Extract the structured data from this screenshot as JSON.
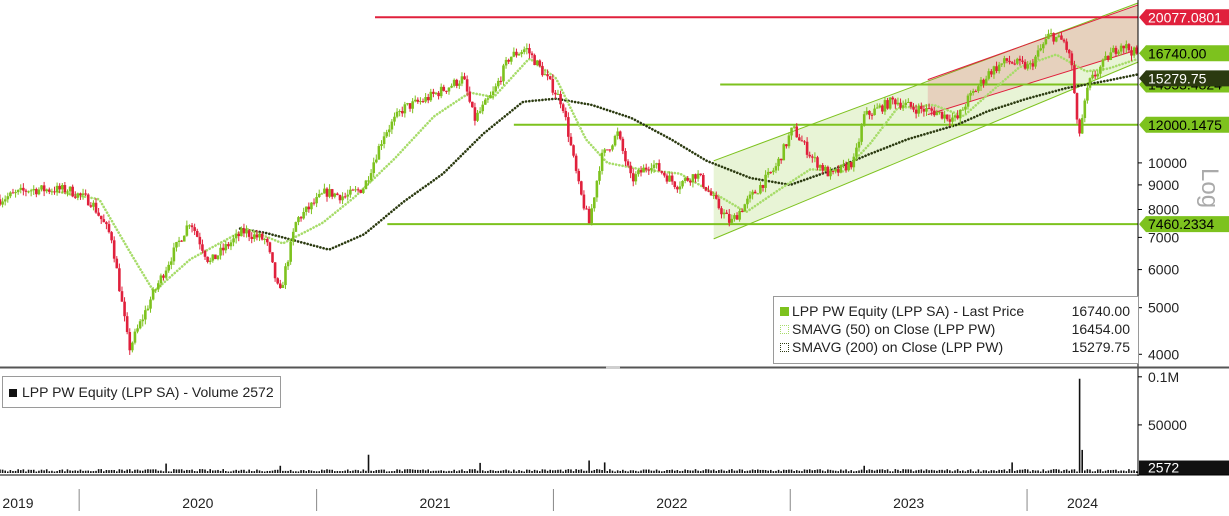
{
  "chart_data": [
    {
      "type": "candlestick",
      "scale": "log",
      "ylim": [
        3800,
        21500
      ],
      "y_axis_label": "Log",
      "y_ticks": [
        4000,
        5000,
        6000,
        7000,
        8000,
        9000,
        10000
      ],
      "x_labels": [
        "2019",
        "2020",
        "2021",
        "2022",
        "2023",
        "2024"
      ],
      "x_range": [
        "2019-09-01",
        "2024-06-20"
      ],
      "series": [
        {
          "name": "LPP PW Equity (LPP SA) - Last Price",
          "legend_value": "16740.00",
          "color": "#7dc21e"
        },
        {
          "name": "SMAVG (50)  on Close (LPP PW)",
          "legend_value": "16454.00",
          "color": "#a7dc6a"
        },
        {
          "name": "SMAVG (200)  on Close (LPP PW)",
          "legend_value": "15279.75",
          "color": "#2b3a10"
        }
      ],
      "price_points": [
        [
          "2019-09-01",
          8400
        ],
        [
          "2019-10-15",
          8800
        ],
        [
          "2019-12-15",
          8800
        ],
        [
          "2020-01-20",
          8300
        ],
        [
          "2020-02-20",
          7000
        ],
        [
          "2020-03-18",
          4100
        ],
        [
          "2020-04-20",
          5200
        ],
        [
          "2020-05-20",
          6300
        ],
        [
          "2020-06-20",
          7600
        ],
        [
          "2020-07-20",
          6200
        ],
        [
          "2020-08-20",
          6800
        ],
        [
          "2020-09-10",
          7200
        ],
        [
          "2020-10-15",
          6900
        ],
        [
          "2020-11-05",
          5300
        ],
        [
          "2020-12-01",
          7600
        ],
        [
          "2021-01-15",
          8700
        ],
        [
          "2021-02-15",
          8500
        ],
        [
          "2021-03-15",
          8900
        ],
        [
          "2021-04-15",
          11500
        ],
        [
          "2021-05-15",
          13000
        ],
        [
          "2021-06-15",
          13500
        ],
        [
          "2021-07-15",
          14200
        ],
        [
          "2021-08-15",
          15000
        ],
        [
          "2021-09-01",
          12300
        ],
        [
          "2021-10-01",
          14000
        ],
        [
          "2021-10-25",
          16600
        ],
        [
          "2021-11-20",
          17300
        ],
        [
          "2021-12-15",
          15500
        ],
        [
          "2022-01-15",
          13300
        ],
        [
          "2022-02-10",
          8800
        ],
        [
          "2022-02-25",
          7500
        ],
        [
          "2022-03-15",
          10200
        ],
        [
          "2022-04-10",
          11500
        ],
        [
          "2022-05-01",
          9200
        ],
        [
          "2022-06-01",
          10000
        ],
        [
          "2022-07-10",
          9000
        ],
        [
          "2022-08-10",
          9500
        ],
        [
          "2022-09-10",
          8200
        ],
        [
          "2022-10-01",
          7500
        ],
        [
          "2022-10-20",
          8100
        ],
        [
          "2022-12-10",
          9800
        ],
        [
          "2023-01-05",
          11800
        ],
        [
          "2023-02-05",
          10200
        ],
        [
          "2023-03-05",
          9400
        ],
        [
          "2023-04-10",
          10100
        ],
        [
          "2023-04-25",
          12500
        ],
        [
          "2023-06-10",
          13500
        ],
        [
          "2023-07-10",
          13000
        ],
        [
          "2023-08-10",
          12800
        ],
        [
          "2023-09-15",
          12300
        ],
        [
          "2023-10-01",
          13500
        ],
        [
          "2023-11-05",
          15500
        ],
        [
          "2023-12-01",
          16300
        ],
        [
          "2024-01-05",
          15800
        ],
        [
          "2024-02-05",
          18500
        ],
        [
          "2024-02-28",
          17800
        ],
        [
          "2024-03-10",
          16000
        ],
        [
          "2024-03-20",
          11200
        ],
        [
          "2024-04-05",
          14600
        ],
        [
          "2024-05-05",
          16600
        ],
        [
          "2024-05-25",
          17700
        ],
        [
          "2024-06-20",
          16740
        ]
      ],
      "sma50_points": [
        [
          "2019-12-01",
          8700
        ],
        [
          "2020-02-01",
          8400
        ],
        [
          "2020-03-20",
          6500
        ],
        [
          "2020-04-25",
          5400
        ],
        [
          "2020-06-20",
          6300
        ],
        [
          "2020-09-15",
          7300
        ],
        [
          "2020-11-10",
          6800
        ],
        [
          "2021-01-10",
          7500
        ],
        [
          "2021-03-01",
          8500
        ],
        [
          "2021-05-01",
          10200
        ],
        [
          "2021-07-01",
          12500
        ],
        [
          "2021-08-25",
          14000
        ],
        [
          "2021-10-01",
          13700
        ],
        [
          "2021-11-25",
          16500
        ],
        [
          "2022-01-05",
          15000
        ],
        [
          "2022-02-20",
          11200
        ],
        [
          "2022-03-25",
          10000
        ],
        [
          "2022-05-15",
          9700
        ],
        [
          "2022-07-15",
          9500
        ],
        [
          "2022-09-15",
          8500
        ],
        [
          "2022-10-25",
          7900
        ],
        [
          "2022-12-15",
          8800
        ],
        [
          "2023-02-01",
          9700
        ],
        [
          "2023-03-25",
          9600
        ],
        [
          "2023-05-05",
          11000
        ],
        [
          "2023-06-15",
          13000
        ],
        [
          "2023-08-10",
          13200
        ],
        [
          "2023-09-25",
          12500
        ],
        [
          "2023-11-05",
          14000
        ],
        [
          "2023-12-20",
          15800
        ],
        [
          "2024-02-15",
          16800
        ],
        [
          "2024-04-01",
          15500
        ],
        [
          "2024-05-05",
          15700
        ],
        [
          "2024-06-20",
          16454
        ]
      ],
      "sma200_points": [
        [
          "2020-09-05",
          7300
        ],
        [
          "2020-10-15",
          7150
        ],
        [
          "2020-12-15",
          6800
        ],
        [
          "2021-01-20",
          6600
        ],
        [
          "2021-03-15",
          7100
        ],
        [
          "2021-05-15",
          8300
        ],
        [
          "2021-07-15",
          9500
        ],
        [
          "2021-09-15",
          11500
        ],
        [
          "2021-11-15",
          13400
        ],
        [
          "2022-01-05",
          13600
        ],
        [
          "2022-03-01",
          13200
        ],
        [
          "2022-05-01",
          12400
        ],
        [
          "2022-07-01",
          11200
        ],
        [
          "2022-08-25",
          10100
        ],
        [
          "2022-11-01",
          9300
        ],
        [
          "2023-01-01",
          9000
        ],
        [
          "2023-03-01",
          9600
        ],
        [
          "2023-05-01",
          10400
        ],
        [
          "2023-07-01",
          11200
        ],
        [
          "2023-09-15",
          12000
        ],
        [
          "2023-11-01",
          12800
        ],
        [
          "2024-01-01",
          13600
        ],
        [
          "2024-03-01",
          14300
        ],
        [
          "2024-05-01",
          14800
        ],
        [
          "2024-06-20",
          15279.75
        ]
      ],
      "horizontal_levels": [
        {
          "value": 20077.0801,
          "label": "20077.0801",
          "color": "#e0203c",
          "from": "2021-04-01"
        },
        {
          "value": 14553.4824,
          "label": "14553.4824",
          "color": "#7dc21e",
          "from": "2022-09-15"
        },
        {
          "value": 12000.1475,
          "label": "12000.1475",
          "color": "#7dc21e",
          "from": "2021-11-01"
        },
        {
          "value": 7460.2334,
          "label": "7460.2334",
          "color": "#7dc21e",
          "from": "2021-04-20"
        }
      ],
      "price_labels": [
        {
          "value": 16740.0,
          "label": "16740.00",
          "color": "#7dc21e"
        },
        {
          "value": 15279.75,
          "label": "15279.75",
          "color": "#2b3a10"
        }
      ],
      "channels": [
        {
          "color": "#7dc21e",
          "start": "2022-09-05",
          "end": "2024-06-20",
          "lower": [
            6950,
            16200
          ],
          "upper": [
            10100,
            21500
          ]
        },
        {
          "color": "#e0203c",
          "start": "2023-08-01",
          "end": "2024-06-20",
          "lower": [
            12600,
            17200
          ],
          "upper": [
            14900,
            21300
          ]
        }
      ]
    },
    {
      "type": "bar",
      "legend": "LPP PW Equity (LPP SA) - Volume 2572",
      "ylim": [
        0,
        105000
      ],
      "y_ticks": [
        {
          "value": 100000,
          "label": "0.1M"
        },
        {
          "value": 50000,
          "label": "50000"
        }
      ],
      "last_value_label": "2572",
      "last_value": 2572,
      "spikes": [
        [
          "2020-05-15",
          9800
        ],
        [
          "2020-11-05",
          7500
        ],
        [
          "2021-03-20",
          19000
        ],
        [
          "2021-09-10",
          10500
        ],
        [
          "2022-02-25",
          13000
        ],
        [
          "2022-03-20",
          11000
        ],
        [
          "2023-04-25",
          7500
        ],
        [
          "2023-12-10",
          11000
        ],
        [
          "2024-03-20",
          98000
        ],
        [
          "2024-03-25",
          24000
        ]
      ]
    }
  ]
}
